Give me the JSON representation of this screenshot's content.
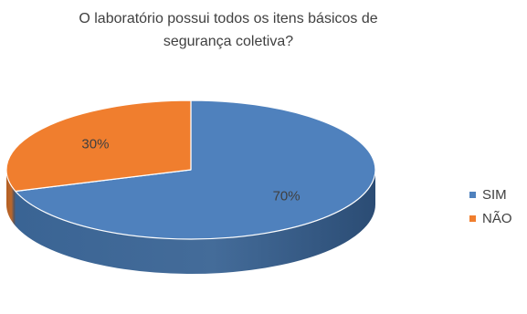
{
  "chart_data": {
    "type": "pie",
    "title_lines": [
      "O laboratório possui todos os itens básicos de",
      "segurança coletiva?"
    ],
    "categories": [
      "SIM",
      "NÃO"
    ],
    "values": [
      70,
      30
    ],
    "labels": [
      "70%",
      "30%"
    ],
    "colors": [
      "#4F81BD",
      "#F07E2E"
    ],
    "side_colors": [
      "#3A6494",
      "#B55F22"
    ],
    "legend_position": "right",
    "three_d": true
  }
}
